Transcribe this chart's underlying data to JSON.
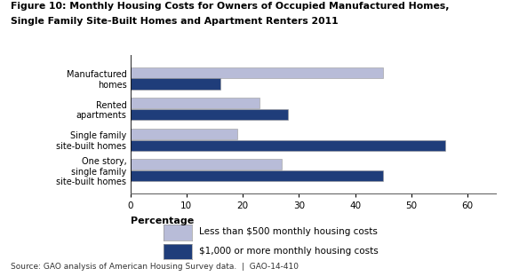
{
  "title_line1": "Figure 10: Monthly Housing Costs for Owners of Occupied Manufactured Homes,",
  "title_line2": "Single Family Site-Built Homes and Apartment Renters 2011",
  "categories": [
    "Manufactured\nhomes",
    "Rented\napartments",
    "Single family\nsite-built homes",
    "One story,\nsingle family\nsite-built homes"
  ],
  "less_than_500": [
    45,
    23,
    19,
    27
  ],
  "more_than_1000": [
    16,
    28,
    56,
    45
  ],
  "color_light": "#b8bcd8",
  "color_dark": "#1f3d7a",
  "xlabel": "Percentage",
  "xlim": [
    0,
    65
  ],
  "xticks": [
    0,
    10,
    20,
    30,
    40,
    50,
    60
  ],
  "legend_labels": [
    "Less than $500 monthly housing costs",
    "$1,000 or more monthly housing costs"
  ],
  "source_text": "Source: GAO analysis of American Housing Survey data.  |  GAO-14-410",
  "bar_height": 0.35,
  "background_color": "#ffffff"
}
